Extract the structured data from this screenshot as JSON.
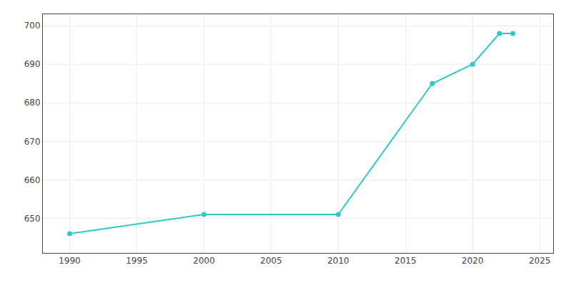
{
  "chart_data": {
    "type": "line",
    "x": [
      1990,
      2000,
      2010,
      2017,
      2020,
      2022,
      2023
    ],
    "values": [
      646,
      651,
      651,
      685,
      690,
      698,
      698
    ],
    "color": "#2ec8c8",
    "marker": "circle",
    "xlim": [
      1988,
      2026
    ],
    "ylim": [
      641,
      703
    ],
    "xticks": [
      1990,
      1995,
      2000,
      2005,
      2010,
      2015,
      2020,
      2025
    ],
    "yticks": [
      650,
      660,
      670,
      680,
      690,
      700
    ],
    "grid": true
  }
}
